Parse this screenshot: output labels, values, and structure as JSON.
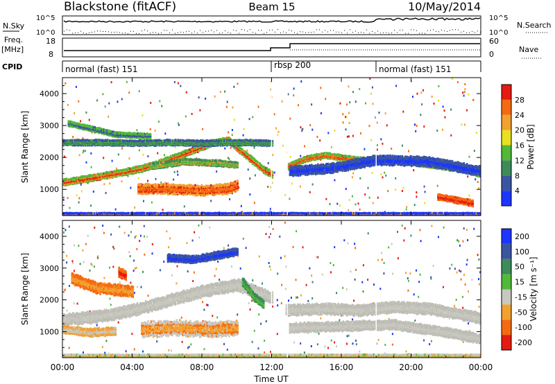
{
  "header": {
    "title": "Blackstone (fitACF)",
    "beam": "Beam 15",
    "date": "10/May/2014"
  },
  "noise_panel": {
    "left_label": "N.Sky",
    "right_label": "N.Search",
    "tick_top": "10^5",
    "tick_bottom": "10^0"
  },
  "freq_panel": {
    "left_label_1": "Freq.",
    "left_label_2": "[MHz]",
    "right_label": "Nave",
    "left_ticks": [
      "18",
      "8"
    ],
    "right_ticks": [
      "60",
      "0"
    ]
  },
  "cpid_panel": {
    "label": "CPID",
    "segments": [
      {
        "label": "normal (fast) 151",
        "start_hour": 0
      },
      {
        "label": "rbsp 200",
        "start_hour": 12
      },
      {
        "label": "normal (fast) 151",
        "start_hour": 18
      }
    ]
  },
  "chart_data": [
    {
      "type": "heatmap",
      "name": "power",
      "ylabel": "Slant Range [km]",
      "ylim": [
        180,
        4500
      ],
      "yticks": [
        "1000",
        "2000",
        "3000",
        "4000"
      ],
      "xlim": [
        0,
        24
      ],
      "colorbar": {
        "label": "Power [dB]",
        "ticks": [
          "4",
          "8",
          "12",
          "16",
          "20",
          "24",
          "28"
        ],
        "colors": [
          "#1c36ff",
          "#3b55a0",
          "#3d8a5a",
          "#52b83a",
          "#e8e020",
          "#f2a030",
          "#f56a10",
          "#e51a10"
        ]
      },
      "bands": [
        {
          "path": [
            [
              0.0,
              1250
            ],
            [
              1.5,
              1380
            ],
            [
              3.0,
              1520
            ],
            [
              4.5,
              1680
            ],
            [
              5.5,
              1850
            ],
            [
              7.0,
              2150
            ],
            [
              8.5,
              2480
            ],
            [
              9.5,
              2560
            ],
            [
              10.5,
              2100
            ],
            [
              11.5,
              1650
            ],
            [
              12.0,
              1500
            ]
          ],
          "width": 170,
          "colors": [
            "#e51a10",
            "#f56a10",
            "#f2a030",
            "#52b83a"
          ]
        },
        {
          "path": [
            [
              0.0,
              2500
            ],
            [
              2.0,
              2500
            ],
            [
              4.0,
              2480
            ],
            [
              6.0,
              2500
            ],
            [
              8.0,
              2480
            ],
            [
              10.0,
              2500
            ],
            [
              12.0,
              2480
            ]
          ],
          "width": 150,
          "colors": [
            "#3d8a5a",
            "#52b83a",
            "#3b55a0"
          ]
        },
        {
          "path": [
            [
              0.3,
              3100
            ],
            [
              1.5,
              2950
            ],
            [
              3.0,
              2750
            ],
            [
              5.0,
              2700
            ]
          ],
          "width": 130,
          "colors": [
            "#3b55a0",
            "#52b83a"
          ]
        },
        {
          "path": [
            [
              4.3,
              1050
            ],
            [
              6.0,
              1050
            ],
            [
              8.0,
              1000
            ],
            [
              9.5,
              1050
            ],
            [
              10.0,
              1150
            ]
          ],
          "width": 280,
          "colors": [
            "#f56a10",
            "#e51a10",
            "#f2a030"
          ]
        },
        {
          "path": [
            [
              5.0,
              1750
            ],
            [
              7.0,
              1900
            ],
            [
              9.0,
              1850
            ],
            [
              10.0,
              1800
            ]
          ],
          "width": 160,
          "colors": [
            "#52b83a",
            "#f2a030",
            "#3d8a5a"
          ]
        },
        {
          "path": [
            [
              12.9,
              1750
            ],
            [
              14.0,
              2000
            ],
            [
              15.0,
              2100
            ],
            [
              17.0,
              1950
            ],
            [
              19.0,
              1950
            ],
            [
              21.0,
              1800
            ],
            [
              22.5,
              1700
            ],
            [
              24.0,
              1500
            ]
          ],
          "width": 150,
          "colors": [
            "#f56a10",
            "#e51a10",
            "#f2a030",
            "#52b83a"
          ]
        },
        {
          "path": [
            [
              13.0,
              1600
            ],
            [
              15.5,
              1700
            ],
            [
              18.0,
              1950
            ],
            [
              21.0,
              1900
            ],
            [
              24.0,
              1600
            ]
          ],
          "width": 260,
          "colors": [
            "#1c36ff",
            "#3b55a0"
          ]
        },
        {
          "path": [
            [
              21.5,
              800
            ],
            [
              22.5,
              700
            ],
            [
              23.5,
              600
            ]
          ],
          "width": 160,
          "colors": [
            "#e51a10",
            "#f56a10"
          ]
        },
        {
          "path": [
            [
              0.0,
              250
            ],
            [
              12.0,
              250
            ],
            [
              24.0,
              250
            ]
          ],
          "width": 80,
          "colors": [
            "#3b55a0",
            "#f2a030",
            "#1c36ff"
          ]
        }
      ]
    },
    {
      "type": "heatmap",
      "name": "velocity",
      "ylabel": "Slant Range [km]",
      "ylim": [
        180,
        4500
      ],
      "yticks": [
        "1000",
        "2000",
        "3000",
        "4000"
      ],
      "xlim": [
        0,
        24
      ],
      "xticks": [
        "00:00",
        "04:00",
        "08:00",
        "12:00",
        "16:00",
        "20:00",
        "00:00"
      ],
      "xlabel": "Time UT",
      "colorbar": {
        "label": "Velocity [m s⁻¹]",
        "ticks": [
          "200",
          "100",
          "50",
          "15",
          "-15",
          "-50",
          "-100",
          "-200"
        ],
        "colors": [
          "#1c36ff",
          "#3b55a0",
          "#3d8a5a",
          "#52b83a",
          "#c8c8c0",
          "#f2a030",
          "#f56a10",
          "#e51a10"
        ]
      },
      "bands": [
        {
          "path": [
            [
              0.0,
              1400
            ],
            [
              2.0,
              1500
            ],
            [
              4.0,
              1700
            ],
            [
              6.0,
              2000
            ],
            [
              8.0,
              2300
            ],
            [
              10.0,
              2500
            ],
            [
              12.0,
              2100
            ]
          ],
          "width": 320,
          "colors": [
            "#c8c8c0",
            "#bdbdb5"
          ]
        },
        {
          "path": [
            [
              0.5,
              2700
            ],
            [
              2.0,
              2400
            ],
            [
              4.0,
              2300
            ]
          ],
          "width": 300,
          "colors": [
            "#f2a030",
            "#f56a10"
          ]
        },
        {
          "path": [
            [
              0.0,
              1100
            ],
            [
              1.5,
              1000
            ],
            [
              3.0,
              1050
            ]
          ],
          "width": 220,
          "colors": [
            "#c8c8c0",
            "#f2a030"
          ]
        },
        {
          "path": [
            [
              4.5,
              1100
            ],
            [
              6.5,
              1150
            ],
            [
              8.5,
              1100
            ],
            [
              10.0,
              1150
            ]
          ],
          "width": 420,
          "colors": [
            "#f2a030",
            "#f56a10",
            "#c8c8c0"
          ]
        },
        {
          "path": [
            [
              3.2,
              2900
            ],
            [
              3.6,
              2800
            ]
          ],
          "width": 250,
          "colors": [
            "#e51a10",
            "#f56a10"
          ]
        },
        {
          "path": [
            [
              6.0,
              3350
            ],
            [
              7.5,
              3300
            ],
            [
              9.0,
              3450
            ],
            [
              10.0,
              3550
            ]
          ],
          "width": 200,
          "colors": [
            "#1c36ff",
            "#3b55a0"
          ]
        },
        {
          "path": [
            [
              10.3,
              2600
            ],
            [
              11.0,
              2100
            ],
            [
              11.5,
              1900
            ]
          ],
          "width": 220,
          "colors": [
            "#52b83a",
            "#3d8a5a"
          ]
        },
        {
          "path": [
            [
              12.8,
              1700
            ],
            [
              15.0,
              1750
            ],
            [
              17.0,
              1700
            ],
            [
              19.0,
              1800
            ],
            [
              21.0,
              1750
            ],
            [
              23.0,
              1550
            ],
            [
              24.0,
              1450
            ]
          ],
          "width": 300,
          "colors": [
            "#c8c8c0",
            "#bdbdb5"
          ]
        },
        {
          "path": [
            [
              13.0,
              1150
            ],
            [
              16.0,
              1200
            ],
            [
              19.0,
              1250
            ],
            [
              22.0,
              1000
            ],
            [
              24.0,
              800
            ]
          ],
          "width": 260,
          "colors": [
            "#c8c8c0",
            "#bdbdb5"
          ]
        },
        {
          "path": [
            [
              0.0,
              260
            ],
            [
              12.0,
              260
            ],
            [
              24.0,
              260
            ]
          ],
          "width": 90,
          "colors": [
            "#f2a030",
            "#52b83a",
            "#c8c8c0"
          ]
        }
      ]
    }
  ]
}
